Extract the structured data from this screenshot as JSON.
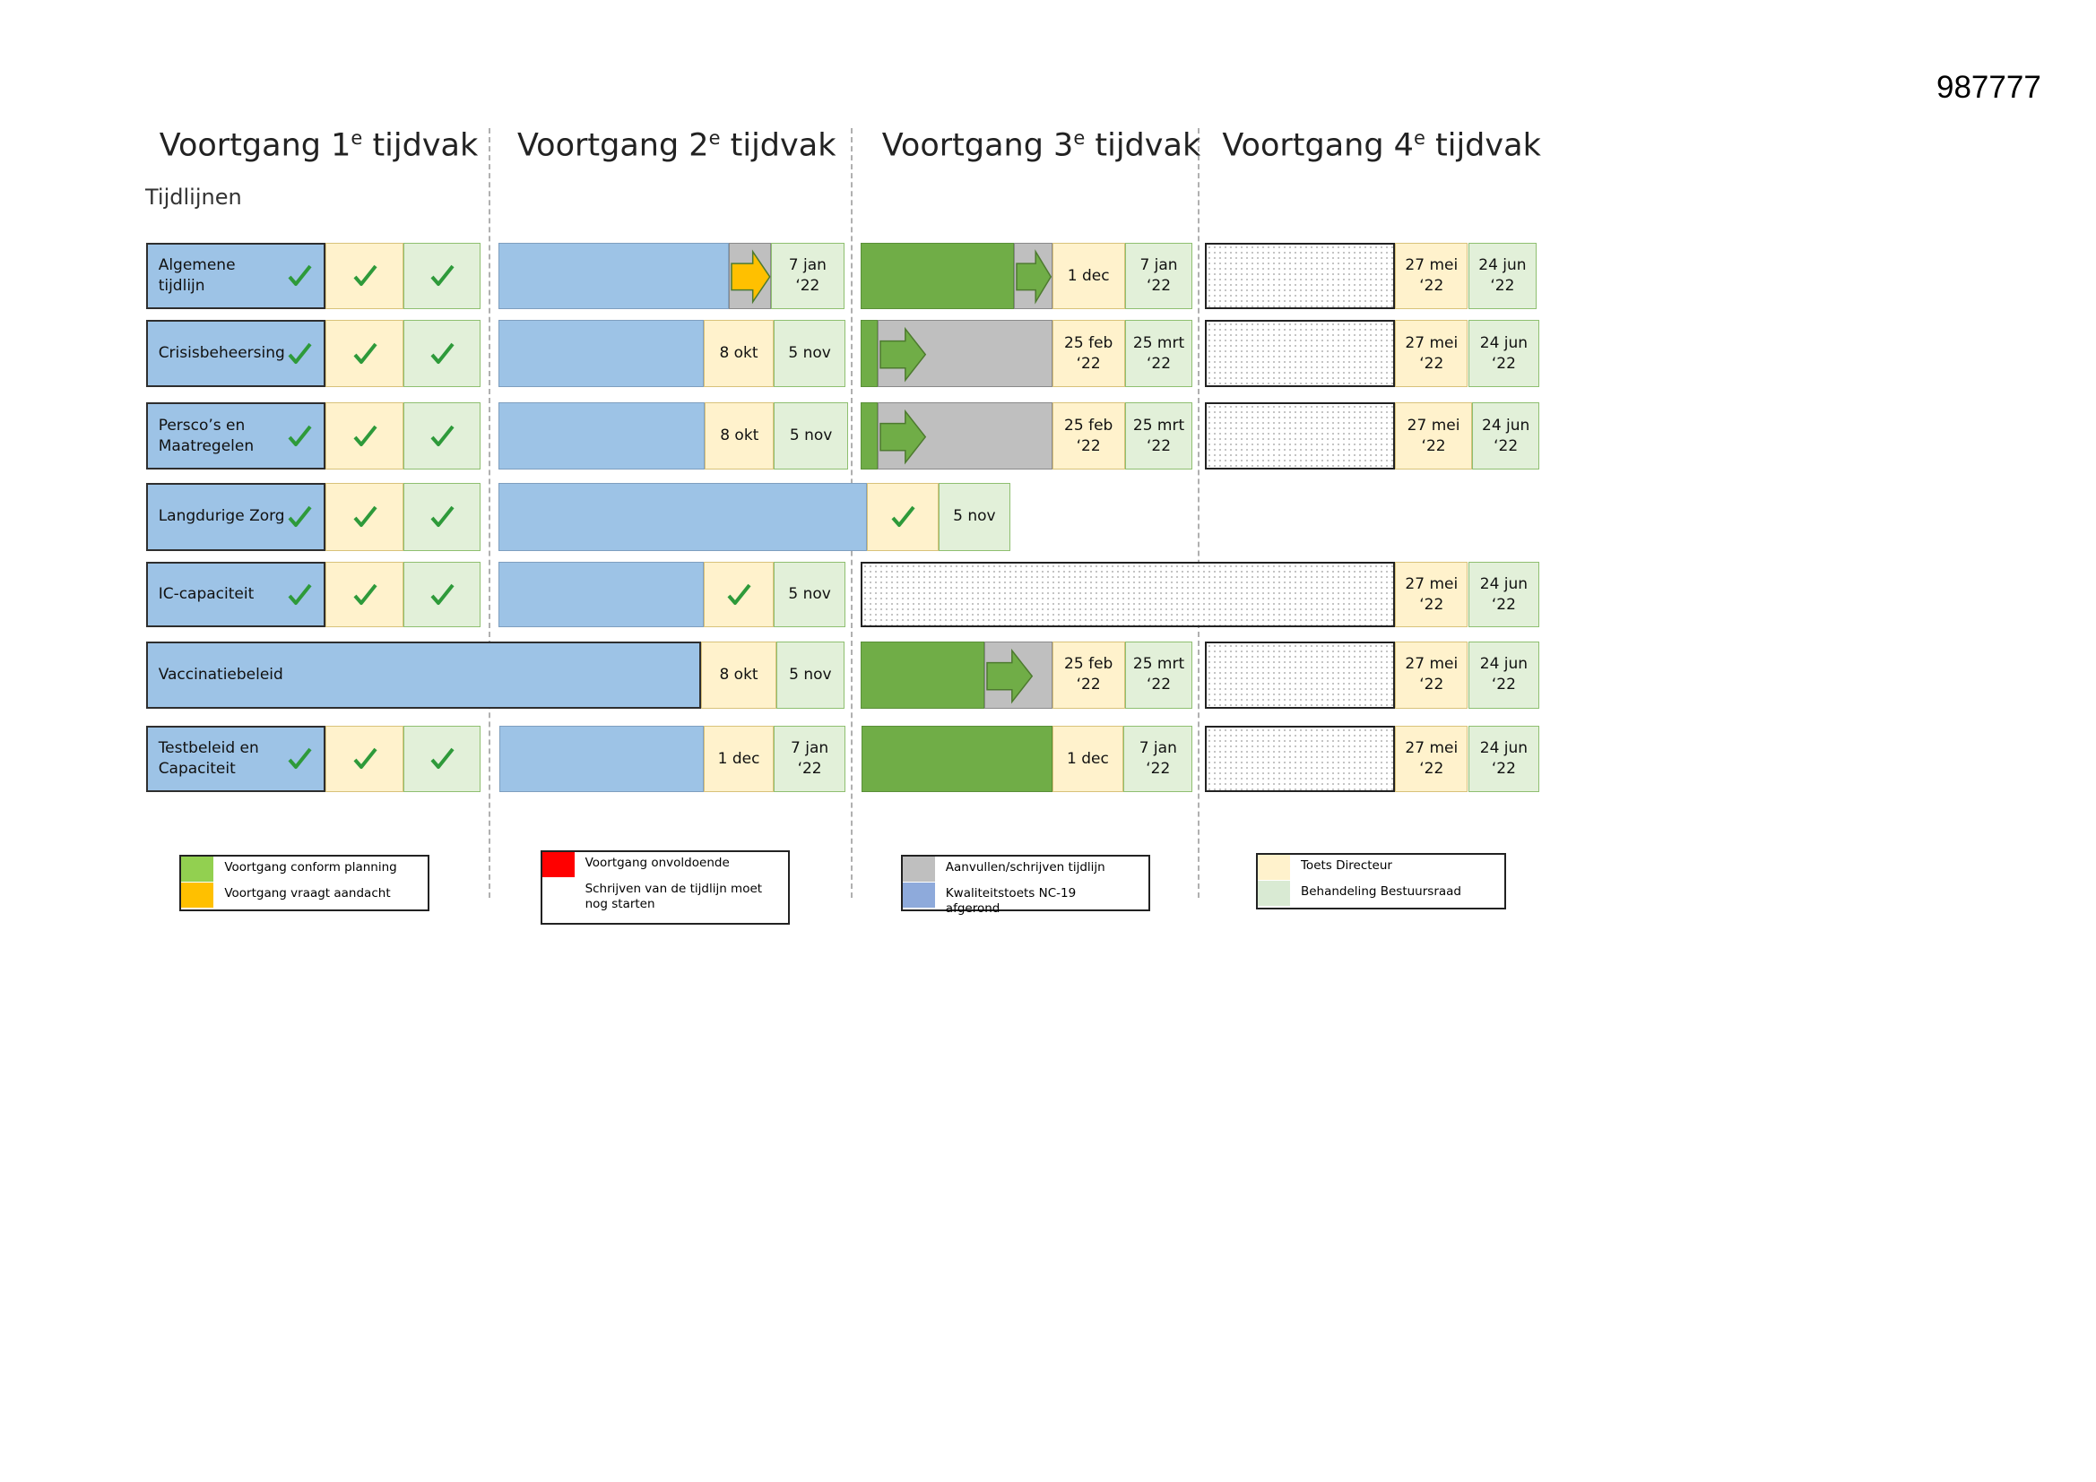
{
  "doc_id": "987777",
  "periods": [
    {
      "title": "Voortgang 1",
      "sup": "e",
      "rest": "tijdvak"
    },
    {
      "title": "Voortgang 2",
      "sup": "e",
      "rest": "tijdvak"
    },
    {
      "title": "Voortgang 3",
      "sup": "e",
      "rest": "tijdvak"
    },
    {
      "title": "Voortgang 4",
      "sup": "e",
      "rest": "tijdvak"
    }
  ],
  "subtitle": "Tijdlijnen",
  "rows": [
    {
      "label": [
        "Algemene",
        "tijdlijn"
      ],
      "dates": [
        [
          "7 jan",
          "‘22"
        ],
        [
          "1 dec"
        ],
        [
          "7 jan",
          "‘22"
        ],
        [
          "27 mei",
          "‘22"
        ],
        [
          "24 jun",
          "‘22"
        ]
      ]
    },
    {
      "label": [
        "Crisisbeheersing"
      ],
      "dates": [
        [
          "8 okt"
        ],
        [
          "5 nov"
        ],
        [
          "25 feb",
          "‘22"
        ],
        [
          "25 mrt",
          "‘22"
        ],
        [
          "27 mei",
          "‘22"
        ],
        [
          "24 jun",
          "‘22"
        ]
      ]
    },
    {
      "label": [
        "Persco’s en",
        "Maatregelen"
      ],
      "dates": [
        [
          "8 okt"
        ],
        [
          "5 nov"
        ],
        [
          "25 feb",
          "‘22"
        ],
        [
          "25 mrt",
          "‘22"
        ],
        [
          "27 mei",
          "‘22"
        ],
        [
          "24 jun",
          "‘22"
        ]
      ]
    },
    {
      "label": [
        "Langdurige Zorg"
      ],
      "dates": [
        [
          "5 nov"
        ]
      ]
    },
    {
      "label": [
        "IC-capaciteit"
      ],
      "dates": [
        [
          "5 nov"
        ],
        [
          "27 mei",
          "‘22"
        ],
        [
          "24 jun",
          "‘22"
        ]
      ]
    },
    {
      "label": [
        "Vaccinatiebeleid"
      ],
      "dates": [
        [
          "8 okt"
        ],
        [
          "5 nov"
        ],
        [
          "25 feb",
          "‘22"
        ],
        [
          "25 mrt",
          "‘22"
        ],
        [
          "27 mei",
          "‘22"
        ],
        [
          "24 jun",
          "‘22"
        ]
      ]
    },
    {
      "label": [
        "Testbeleid en",
        "Capaciteit"
      ],
      "dates": [
        [
          "1 dec"
        ],
        [
          "7 jan",
          "‘22"
        ],
        [
          "1 dec"
        ],
        [
          "7 jan",
          "‘22"
        ],
        [
          "27 mei",
          "‘22"
        ],
        [
          "24 jun",
          "‘22"
        ]
      ]
    }
  ],
  "legends": [
    [
      "Voortgang conform planning",
      "Voortgang vraagt aandacht"
    ],
    [
      "Voortgang onvoldoende",
      "Schrijven van de tijdlijn moet nog starten"
    ],
    [
      "Aanvullen/schrijven tijdlijn",
      "Kwaliteitstoets NC-19 afgerond"
    ],
    [
      "Toets Directeur",
      "Behandeling Bestuursraad"
    ]
  ]
}
